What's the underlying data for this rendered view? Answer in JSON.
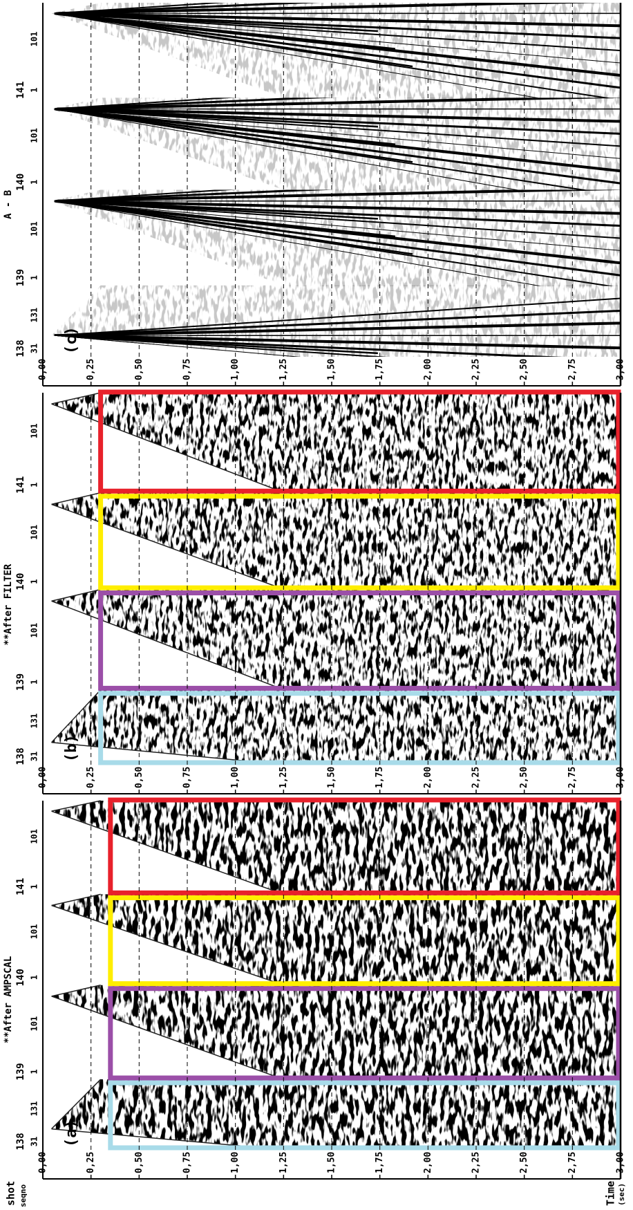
{
  "labels": {
    "shot": "shot",
    "seqno": "seqno",
    "time": "Time",
    "time_unit": "(sec)"
  },
  "time_ticks": [
    "0,00",
    "0,25",
    "0,50",
    "0,75",
    "1,00",
    "1,25",
    "1,50",
    "1,75",
    "2,00",
    "2,25",
    "2,50",
    "2,75",
    "3,00"
  ],
  "panels": [
    {
      "label": "(a)",
      "title": "**After AMPSCAL",
      "shots": [
        {
          "shot": "138",
          "channels": [
            "31",
            "131"
          ]
        },
        {
          "shot": "139",
          "channels": [
            "1",
            "101"
          ]
        },
        {
          "shot": "140",
          "channels": [
            "1",
            "101"
          ]
        },
        {
          "shot": "141",
          "channels": [
            "1",
            "101"
          ]
        }
      ]
    },
    {
      "label": "(b)",
      "title": "**After FILTER",
      "shots": [
        {
          "shot": "138",
          "channels": [
            "31",
            "131"
          ]
        },
        {
          "shot": "139",
          "channels": [
            "1",
            "101"
          ]
        },
        {
          "shot": "140",
          "channels": [
            "1",
            "101"
          ]
        },
        {
          "shot": "141",
          "channels": [
            "1",
            "101"
          ]
        }
      ]
    },
    {
      "label": "(c)",
      "title": "A - B",
      "shots": [
        {
          "shot": "138",
          "channels": [
            "31",
            "131"
          ]
        },
        {
          "shot": "139",
          "channels": [
            "1",
            "101"
          ]
        },
        {
          "shot": "140",
          "channels": [
            "1",
            "101"
          ]
        },
        {
          "shot": "141",
          "channels": [
            "1",
            "101"
          ]
        }
      ]
    }
  ]
}
